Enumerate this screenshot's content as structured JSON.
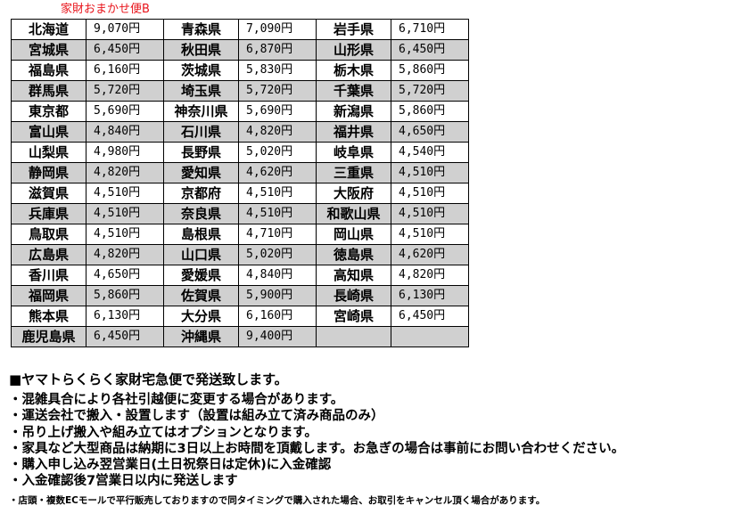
{
  "title": "家財おまかせ便B",
  "rows": [
    [
      [
        "北海道",
        "9,070円"
      ],
      [
        "青森県",
        "7,090円"
      ],
      [
        "岩手県",
        "6,710円"
      ]
    ],
    [
      [
        "宮城県",
        "6,450円"
      ],
      [
        "秋田県",
        "6,870円"
      ],
      [
        "山形県",
        "6,450円"
      ]
    ],
    [
      [
        "福島県",
        "6,160円"
      ],
      [
        "茨城県",
        "5,830円"
      ],
      [
        "栃木県",
        "5,860円"
      ]
    ],
    [
      [
        "群馬県",
        "5,720円"
      ],
      [
        "埼玉県",
        "5,720円"
      ],
      [
        "千葉県",
        "5,720円"
      ]
    ],
    [
      [
        "東京都",
        "5,690円"
      ],
      [
        "神奈川県",
        "5,690円"
      ],
      [
        "新潟県",
        "5,860円"
      ]
    ],
    [
      [
        "富山県",
        "4,840円"
      ],
      [
        "石川県",
        "4,820円"
      ],
      [
        "福井県",
        "4,650円"
      ]
    ],
    [
      [
        "山梨県",
        "4,980円"
      ],
      [
        "長野県",
        "5,020円"
      ],
      [
        "岐阜県",
        "4,540円"
      ]
    ],
    [
      [
        "静岡県",
        "4,820円"
      ],
      [
        "愛知県",
        "4,620円"
      ],
      [
        "三重県",
        "4,510円"
      ]
    ],
    [
      [
        "滋賀県",
        "4,510円"
      ],
      [
        "京都府",
        "4,510円"
      ],
      [
        "大阪府",
        "4,510円"
      ]
    ],
    [
      [
        "兵庫県",
        "4,510円"
      ],
      [
        "奈良県",
        "4,510円"
      ],
      [
        "和歌山県",
        "4,510円"
      ]
    ],
    [
      [
        "鳥取県",
        "4,510円"
      ],
      [
        "島根県",
        "4,710円"
      ],
      [
        "岡山県",
        "4,510円"
      ]
    ],
    [
      [
        "広島県",
        "4,820円"
      ],
      [
        "山口県",
        "5,020円"
      ],
      [
        "徳島県",
        "4,620円"
      ]
    ],
    [
      [
        "香川県",
        "4,650円"
      ],
      [
        "愛媛県",
        "4,840円"
      ],
      [
        "高知県",
        "4,820円"
      ]
    ],
    [
      [
        "福岡県",
        "5,860円"
      ],
      [
        "佐賀県",
        "5,900円"
      ],
      [
        "長崎県",
        "6,130円"
      ]
    ],
    [
      [
        "熊本県",
        "6,130円"
      ],
      [
        "大分県",
        "6,160円"
      ],
      [
        "宮崎県",
        "6,450円"
      ]
    ],
    [
      [
        "鹿児島県",
        "6,450円"
      ],
      [
        "沖縄県",
        "9,400円"
      ],
      [
        "",
        ""
      ]
    ]
  ],
  "notes": {
    "heading": "■ヤマトらくらく家財宅急便で発送致します。",
    "lines": [
      "・混雑具合により各社引越便に変更する場合があります。",
      "・運送会社で搬入・設置します（設置は組み立て済み商品のみ）",
      "・吊り上げ搬入や組み立てはオプションとなります。",
      "・家具など大型商品は納期に3日以上お時間を頂戴します。お急ぎの場合は事前にお問い合わせください。",
      "・購入申し込み翌営業日(土日祝祭日は定休)に入金確認",
      "・入金確認後7営業日以内に発送します"
    ],
    "small": "・店頭・複数ECモールで平行販売しておりますので同タイミングで購入された場合、お取引をキャンセル頂く場合があります。"
  }
}
